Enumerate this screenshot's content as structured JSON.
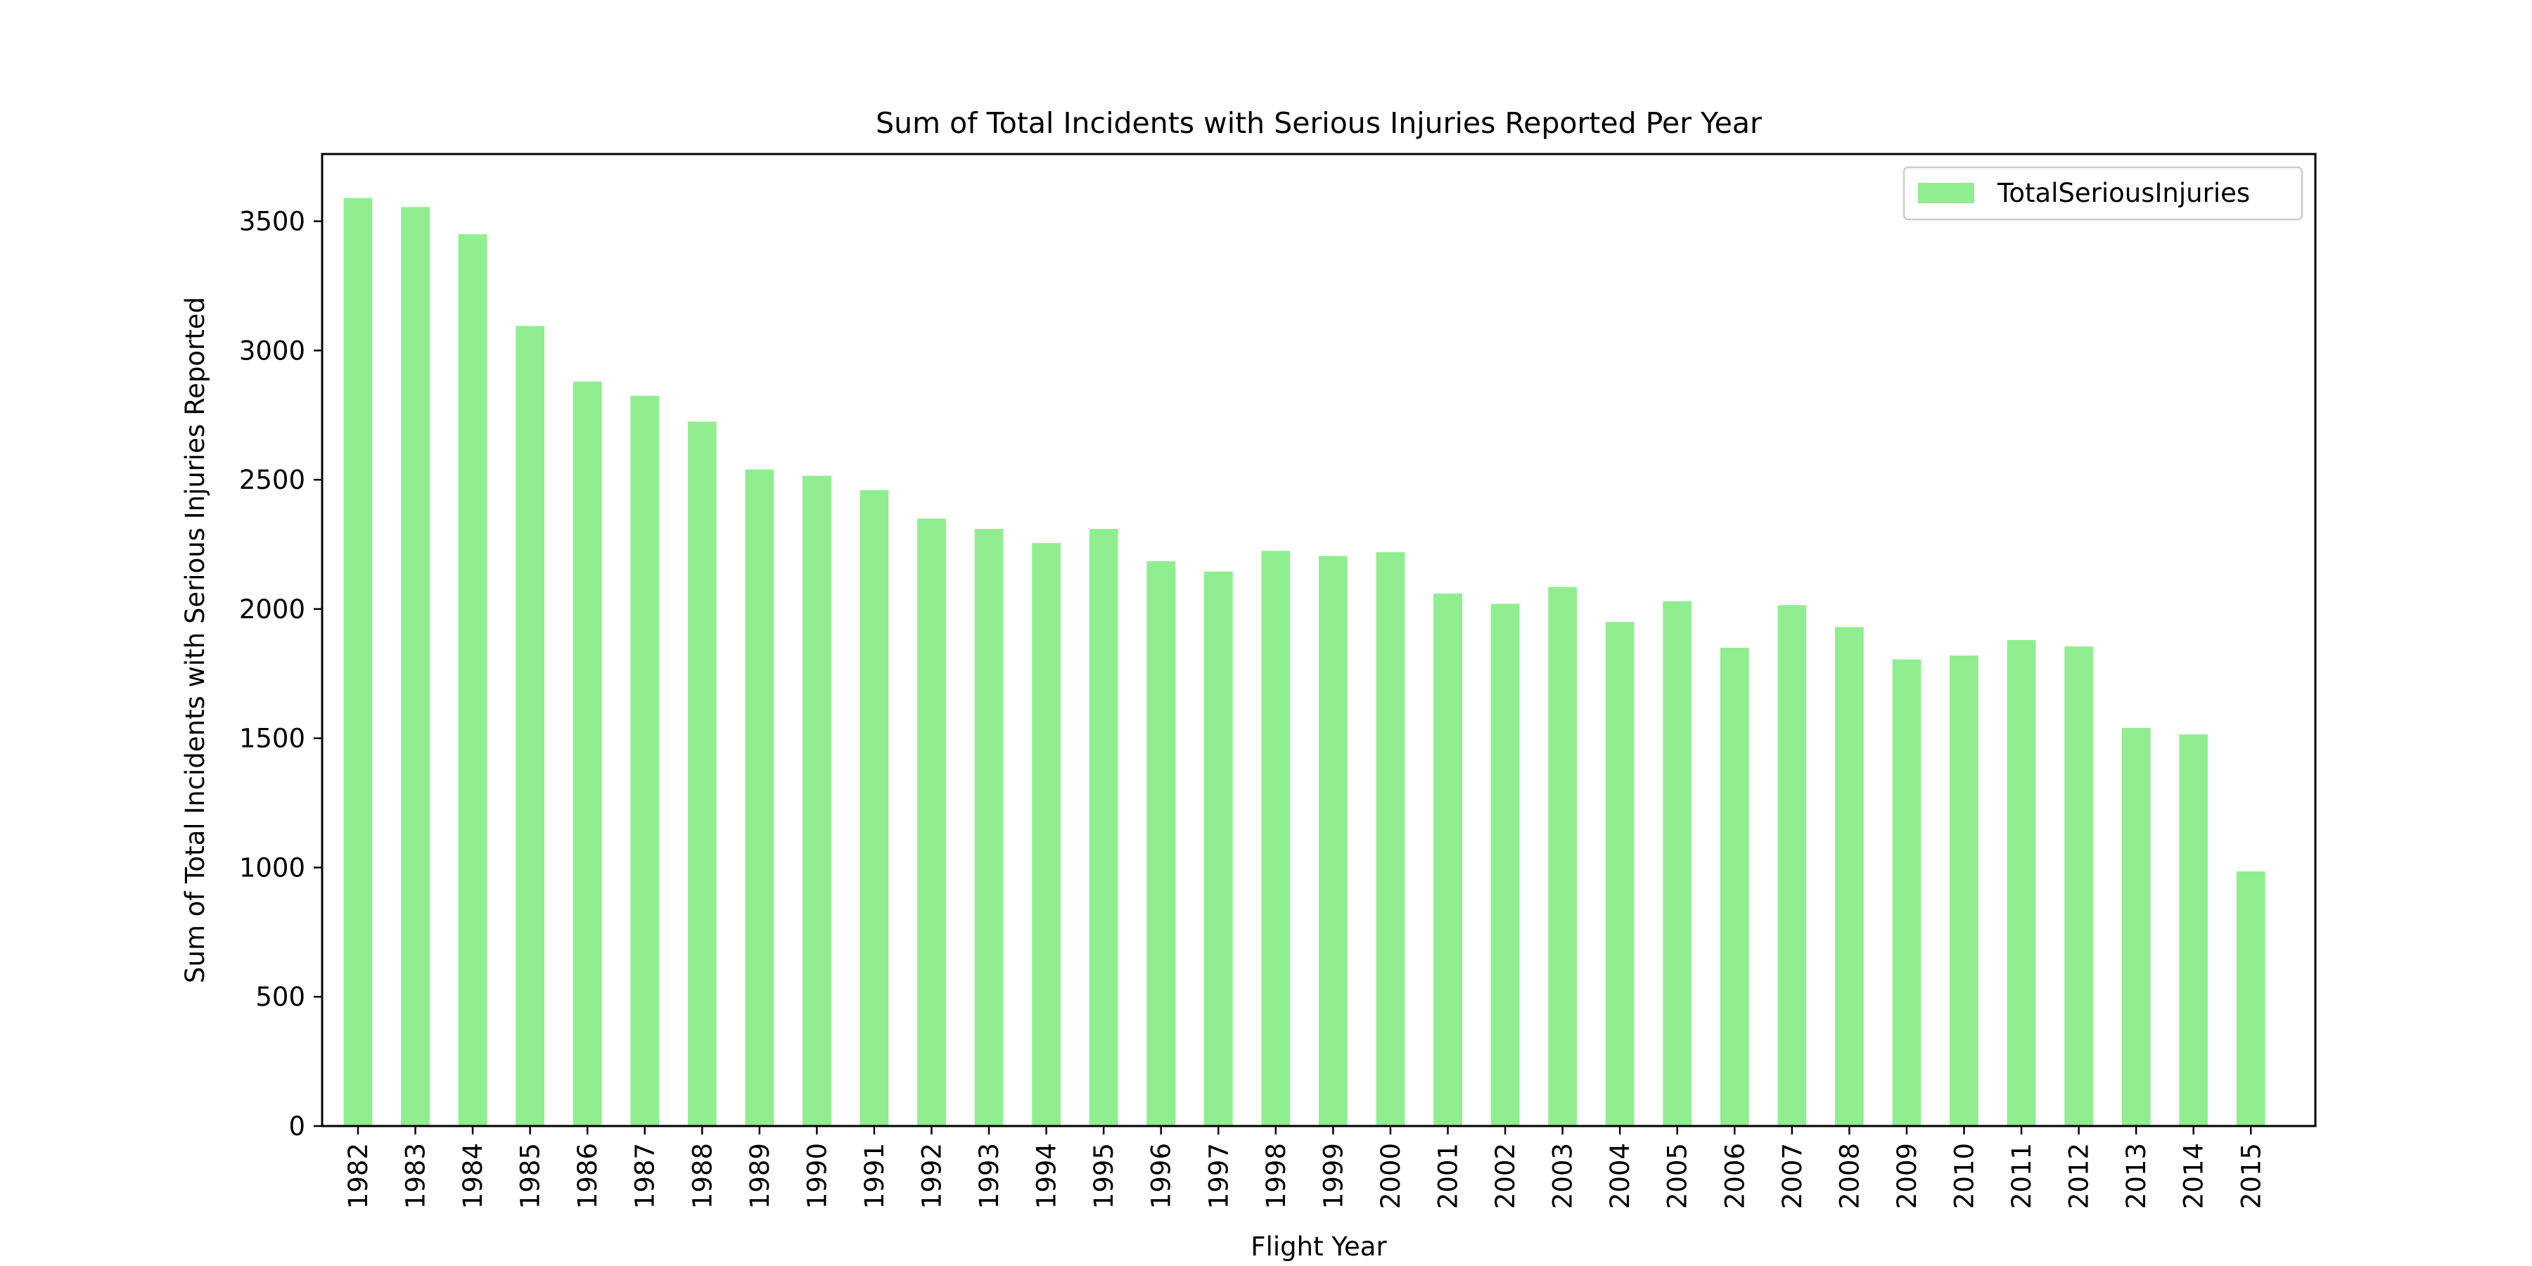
{
  "chart_data": {
    "type": "bar",
    "title": "Sum of Total Incidents with Serious Injuries Reported Per Year",
    "xlabel": "Flight Year",
    "ylabel": "Sum of Total Incidents with Serious Injuries Reported",
    "ylim": [
      0,
      3760
    ],
    "yticks": [
      0,
      500,
      1000,
      1500,
      2000,
      2500,
      3000,
      3500
    ],
    "grid": false,
    "legend_position": "top-right",
    "categories": [
      "1982",
      "1983",
      "1984",
      "1985",
      "1986",
      "1987",
      "1988",
      "1989",
      "1990",
      "1991",
      "1992",
      "1993",
      "1994",
      "1995",
      "1996",
      "1997",
      "1998",
      "1999",
      "2000",
      "2001",
      "2002",
      "2003",
      "2004",
      "2005",
      "2006",
      "2007",
      "2008",
      "2009",
      "2010",
      "2011",
      "2012",
      "2013",
      "2014",
      "2015"
    ],
    "series": [
      {
        "name": "TotalSeriousInjuries",
        "color": "#90ee90",
        "values": [
          3590,
          3555,
          3450,
          3095,
          2880,
          2825,
          2725,
          2540,
          2515,
          2460,
          2350,
          2310,
          2255,
          2310,
          2185,
          2145,
          2225,
          2205,
          2220,
          2060,
          2020,
          2085,
          1950,
          2030,
          1850,
          2015,
          1930,
          1805,
          1820,
          1880,
          1855,
          1540,
          1515,
          985
        ]
      }
    ]
  }
}
